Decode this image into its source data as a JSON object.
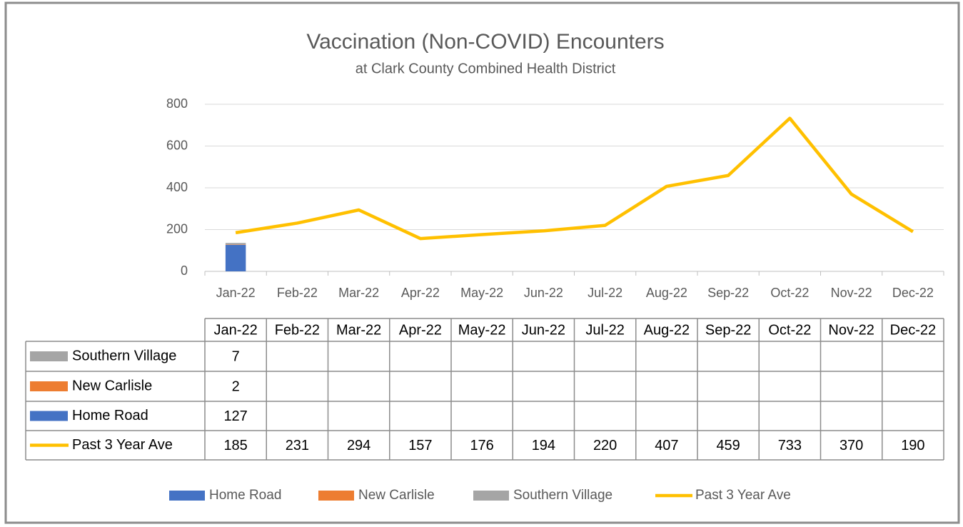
{
  "chart_data": {
    "type": "bar",
    "stacked": true,
    "title": "Vaccination (Non-COVID) Encounters",
    "subtitle": "at Clark County Combined Health District",
    "categories": [
      "Jan-22",
      "Feb-22",
      "Mar-22",
      "Apr-22",
      "May-22",
      "Jun-22",
      "Jul-22",
      "Aug-22",
      "Sep-22",
      "Oct-22",
      "Nov-22",
      "Dec-22"
    ],
    "series": [
      {
        "name": "Home Road",
        "color": "#4472c4",
        "values": [
          127,
          null,
          null,
          null,
          null,
          null,
          null,
          null,
          null,
          null,
          null,
          null
        ]
      },
      {
        "name": "New Carlisle",
        "color": "#ed7d31",
        "values": [
          2,
          null,
          null,
          null,
          null,
          null,
          null,
          null,
          null,
          null,
          null,
          null
        ]
      },
      {
        "name": "Southern Village",
        "color": "#a5a5a5",
        "values": [
          7,
          null,
          null,
          null,
          null,
          null,
          null,
          null,
          null,
          null,
          null,
          null
        ]
      },
      {
        "name": "Past 3 Year Ave",
        "color": "#ffc000",
        "type": "line",
        "values": [
          185,
          231,
          294,
          157,
          176,
          194,
          220,
          407,
          459,
          733,
          370,
          190
        ]
      }
    ],
    "ylim": [
      0,
      800
    ],
    "yticks": [
      0,
      200,
      400,
      600,
      800
    ],
    "grid": true,
    "legend": "bottom",
    "data_table": true
  }
}
